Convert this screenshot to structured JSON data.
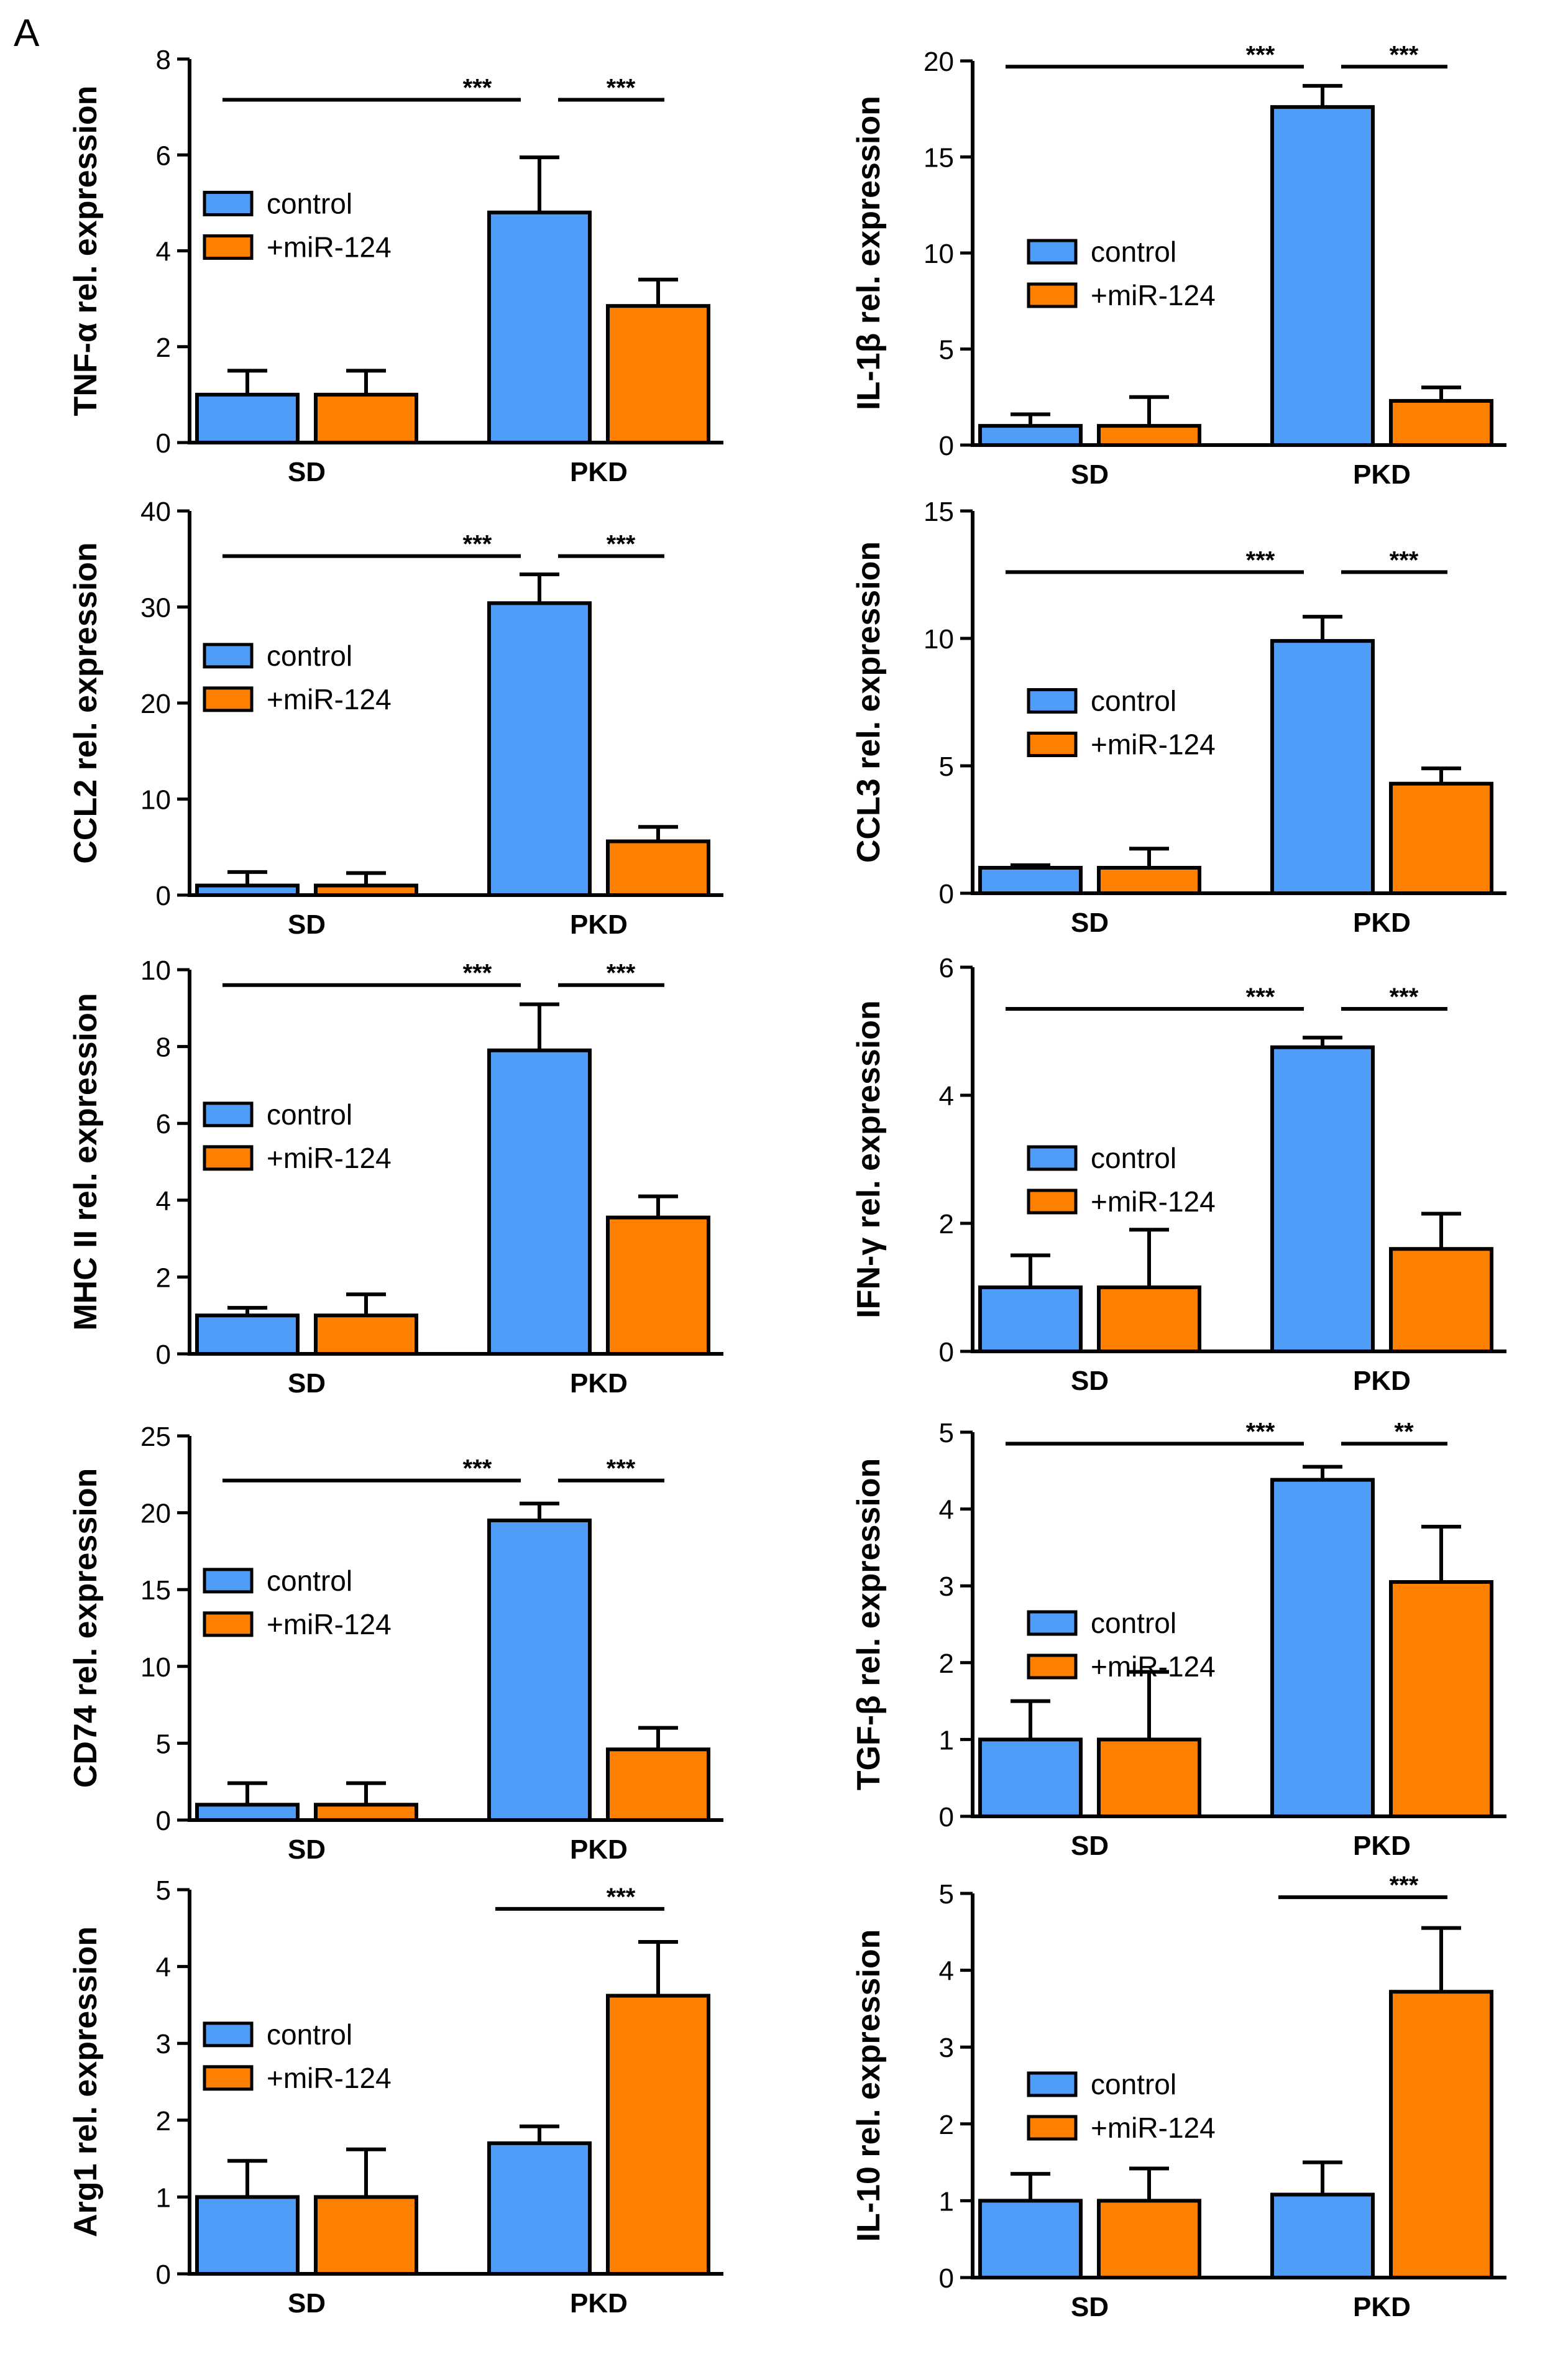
{
  "figure": {
    "panel_label": "A"
  },
  "colors": {
    "control": "#4f9cf9",
    "mir124": "#ff8000",
    "stroke": "#000000"
  },
  "chart_data": [
    {
      "type": "bar",
      "ylabel": "TNF-α rel. expression",
      "categories": [
        "SD",
        "PKD"
      ],
      "ylim": [
        0,
        8
      ],
      "yticks": [
        0,
        2,
        4,
        6,
        8
      ],
      "legend": {
        "position": "left-middle",
        "entries": [
          "control",
          "+miR-124"
        ]
      },
      "series": [
        {
          "name": "control",
          "values": [
            1.0,
            4.8
          ],
          "errors": [
            0.5,
            1.15
          ]
        },
        {
          "name": "+miR-124",
          "values": [
            1.0,
            2.85
          ],
          "errors": [
            0.5,
            0.55
          ]
        }
      ],
      "significance": [
        {
          "from": "SD control",
          "to": "PKD control",
          "label": "***",
          "y": 7.15
        },
        {
          "from": "PKD control",
          "to": "PKD +miR-124",
          "label": "***",
          "y": 7.15
        }
      ]
    },
    {
      "type": "bar",
      "ylabel": "IL-1β rel. expression",
      "categories": [
        "SD",
        "PKD"
      ],
      "ylim": [
        0,
        20
      ],
      "yticks": [
        0,
        5,
        10,
        15,
        20
      ],
      "legend": {
        "position": "center",
        "entries": [
          "control",
          "+miR-124"
        ]
      },
      "series": [
        {
          "name": "control",
          "values": [
            1.0,
            17.6
          ],
          "errors": [
            0.6,
            1.1
          ]
        },
        {
          "name": "+miR-124",
          "values": [
            1.0,
            2.3
          ],
          "errors": [
            1.5,
            0.7
          ]
        }
      ],
      "significance": [
        {
          "from": "SD control",
          "to": "PKD control",
          "label": "***",
          "y": 19.7
        },
        {
          "from": "PKD control",
          "to": "PKD +miR-124",
          "label": "***",
          "y": 19.7
        }
      ]
    },
    {
      "type": "bar",
      "ylabel": "CCL2 rel. expression",
      "categories": [
        "SD",
        "PKD"
      ],
      "ylim": [
        0,
        40
      ],
      "yticks": [
        0,
        10,
        20,
        30,
        40
      ],
      "legend": {
        "position": "left-middle",
        "entries": [
          "control",
          "+miR-124"
        ]
      },
      "series": [
        {
          "name": "control",
          "values": [
            1.0,
            30.4
          ],
          "errors": [
            1.4,
            3.0
          ]
        },
        {
          "name": "+miR-124",
          "values": [
            1.0,
            5.6
          ],
          "errors": [
            1.3,
            1.5
          ]
        }
      ],
      "significance": [
        {
          "from": "SD control",
          "to": "PKD control",
          "label": "***",
          "y": 35.3
        },
        {
          "from": "PKD control",
          "to": "PKD +miR-124",
          "label": "***",
          "y": 35.3
        }
      ]
    },
    {
      "type": "bar",
      "ylabel": "CCL3 rel. expression",
      "categories": [
        "SD",
        "PKD"
      ],
      "ylim": [
        0,
        15
      ],
      "yticks": [
        0,
        5,
        10,
        15
      ],
      "legend": {
        "position": "center",
        "entries": [
          "control",
          "+miR-124"
        ]
      },
      "series": [
        {
          "name": "control",
          "values": [
            1.0,
            9.9
          ],
          "errors": [
            0.1,
            0.95
          ]
        },
        {
          "name": "+miR-124",
          "values": [
            1.0,
            4.3
          ],
          "errors": [
            0.75,
            0.6
          ]
        }
      ],
      "significance": [
        {
          "from": "SD control",
          "to": "PKD control",
          "label": "***",
          "y": 12.6
        },
        {
          "from": "PKD control",
          "to": "PKD +miR-124",
          "label": "***",
          "y": 12.6
        }
      ]
    },
    {
      "type": "bar",
      "ylabel": "MHC II rel. expression",
      "categories": [
        "SD",
        "PKD"
      ],
      "ylim": [
        0,
        10
      ],
      "yticks": [
        0,
        2,
        4,
        6,
        8,
        10
      ],
      "legend": {
        "position": "left-middle",
        "entries": [
          "control",
          "+miR-124"
        ]
      },
      "series": [
        {
          "name": "control",
          "values": [
            1.0,
            7.9
          ],
          "errors": [
            0.2,
            1.2
          ]
        },
        {
          "name": "+miR-124",
          "values": [
            1.0,
            3.55
          ],
          "errors": [
            0.55,
            0.55
          ]
        }
      ],
      "significance": [
        {
          "from": "SD control",
          "to": "PKD control",
          "label": "***",
          "y": 9.6
        },
        {
          "from": "PKD control",
          "to": "PKD +miR-124",
          "label": "***",
          "y": 9.6
        }
      ]
    },
    {
      "type": "bar",
      "ylabel": "IFN-γ rel. expression",
      "categories": [
        "SD",
        "PKD"
      ],
      "ylim": [
        0,
        6
      ],
      "yticks": [
        0,
        2,
        4,
        6
      ],
      "legend": {
        "position": "center",
        "entries": [
          "control",
          "+miR-124"
        ]
      },
      "series": [
        {
          "name": "control",
          "values": [
            1.0,
            4.75
          ],
          "errors": [
            0.5,
            0.15
          ]
        },
        {
          "name": "+miR-124",
          "values": [
            1.0,
            1.6
          ],
          "errors": [
            0.9,
            0.55
          ]
        }
      ],
      "significance": [
        {
          "from": "SD control",
          "to": "PKD control",
          "label": "***",
          "y": 5.35
        },
        {
          "from": "PKD control",
          "to": "PKD +miR-124",
          "label": "***",
          "y": 5.35
        }
      ]
    },
    {
      "type": "bar",
      "ylabel": "CD74 rel. expression",
      "categories": [
        "SD",
        "PKD"
      ],
      "ylim": [
        0,
        25
      ],
      "yticks": [
        0,
        5,
        10,
        15,
        20,
        25
      ],
      "legend": {
        "position": "left-middle",
        "entries": [
          "control",
          "+miR-124"
        ]
      },
      "series": [
        {
          "name": "control",
          "values": [
            1.0,
            19.5
          ],
          "errors": [
            1.4,
            1.1
          ]
        },
        {
          "name": "+miR-124",
          "values": [
            1.0,
            4.6
          ],
          "errors": [
            1.4,
            1.4
          ]
        }
      ],
      "significance": [
        {
          "from": "SD control",
          "to": "PKD control",
          "label": "***",
          "y": 22.1
        },
        {
          "from": "PKD control",
          "to": "PKD +miR-124",
          "label": "***",
          "y": 22.1
        }
      ]
    },
    {
      "type": "bar",
      "ylabel": "TGF-β rel. expression",
      "categories": [
        "SD",
        "PKD"
      ],
      "ylim": [
        0,
        5
      ],
      "yticks": [
        0,
        1,
        2,
        3,
        4,
        5
      ],
      "legend": {
        "position": "center",
        "entries": [
          "control",
          "+miR-124"
        ]
      },
      "series": [
        {
          "name": "control",
          "values": [
            1.0,
            4.38
          ],
          "errors": [
            0.5,
            0.17
          ]
        },
        {
          "name": "+miR-124",
          "values": [
            1.0,
            3.05
          ],
          "errors": [
            0.88,
            0.72
          ]
        }
      ],
      "significance": [
        {
          "from": "SD control",
          "to": "PKD control",
          "label": "***",
          "y": 4.85
        },
        {
          "from": "PKD control",
          "to": "PKD +miR-124",
          "label": "**",
          "y": 4.85
        }
      ]
    },
    {
      "type": "bar",
      "ylabel": "Arg1 rel. expression",
      "categories": [
        "SD",
        "PKD"
      ],
      "ylim": [
        0,
        5
      ],
      "yticks": [
        0,
        1,
        2,
        3,
        4,
        5
      ],
      "legend": {
        "position": "left-middle",
        "entries": [
          "control",
          "+miR-124"
        ]
      },
      "series": [
        {
          "name": "control",
          "values": [
            1.0,
            1.7
          ],
          "errors": [
            0.47,
            0.22
          ]
        },
        {
          "name": "+miR-124",
          "values": [
            1.0,
            3.62
          ],
          "errors": [
            0.62,
            0.7
          ]
        }
      ],
      "significance": [
        {
          "from": "PKD control",
          "to": "PKD +miR-124",
          "label": "***",
          "y": 4.75
        }
      ]
    },
    {
      "type": "bar",
      "ylabel": "IL-10 rel. expression",
      "categories": [
        "SD",
        "PKD"
      ],
      "ylim": [
        0,
        5
      ],
      "yticks": [
        0,
        1,
        2,
        3,
        4,
        5
      ],
      "legend": {
        "position": "center",
        "entries": [
          "control",
          "+miR-124"
        ]
      },
      "series": [
        {
          "name": "control",
          "values": [
            1.0,
            1.08
          ],
          "errors": [
            0.35,
            0.42
          ]
        },
        {
          "name": "+miR-124",
          "values": [
            1.0,
            3.72
          ],
          "errors": [
            0.42,
            0.83
          ]
        }
      ],
      "significance": [
        {
          "from": "PKD control",
          "to": "PKD +miR-124",
          "label": "***",
          "y": 4.95
        }
      ]
    }
  ]
}
